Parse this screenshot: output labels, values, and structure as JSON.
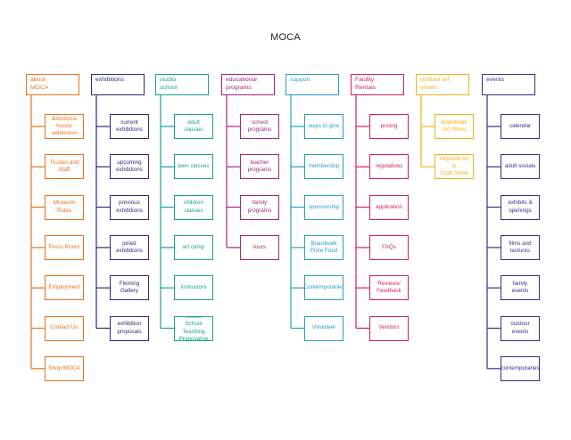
{
  "title": "MOCA",
  "columns": [
    {
      "key": "about",
      "color": "#e8731e",
      "header": "about\nMOCA",
      "items": [
        "directions/\nhours/\nadmission",
        "Trustes and\nStaff",
        "Museum\nRules",
        "Press Room",
        "Employment",
        "Contact Us",
        "Shop MOCA"
      ]
    },
    {
      "key": "exhibitions",
      "color": "#2b2b7a",
      "header": "exhibitions",
      "items": [
        "current\nexhibitions",
        "upcoming\nexhibitions",
        "previous\nexhibitions",
        "juried\nexhibitions",
        "Fleming\nGallery",
        "exhibition\nproposals"
      ]
    },
    {
      "key": "studio",
      "color": "#17a393",
      "header": "studio\nschool",
      "items": [
        "adult classes",
        "teen classes",
        "children\nclasses",
        "art camp",
        "instructors",
        "Studio School\nTeaching\nProposalsw"
      ]
    },
    {
      "key": "educational",
      "color": "#a3267f",
      "header": "educational\nprograms",
      "items": [
        "school\nprograms",
        "teacher\nprograms",
        "family\nprograms",
        "tours"
      ]
    },
    {
      "key": "support",
      "color": "#2a9ec9",
      "header": "support",
      "items": [
        "ways to give",
        "membership",
        "sponsorship",
        "Boardwalk\nPrize Fund",
        "Contemporaries",
        "Volunteer"
      ]
    },
    {
      "key": "facility",
      "color": "#d41f5b",
      "header": "Facility\nRentals",
      "items": [
        "pricing",
        "regulations",
        "application",
        "FAQs",
        "Reviews/\nFeedback",
        "Vendors"
      ]
    },
    {
      "key": "outdoor",
      "color": "#f2b21b",
      "header": "outdoor art\nshows",
      "items": [
        "Boardwalk\nArt Show",
        "Neptune Art &\nCraft Show"
      ]
    },
    {
      "key": "events",
      "color": "#3b2c8c",
      "header": "events",
      "items": [
        "calendar",
        "adult socials",
        "exhibits &\nopenings",
        "films and\nlectures",
        "family events",
        "outdoor\nevents",
        "contemporaries"
      ]
    }
  ]
}
